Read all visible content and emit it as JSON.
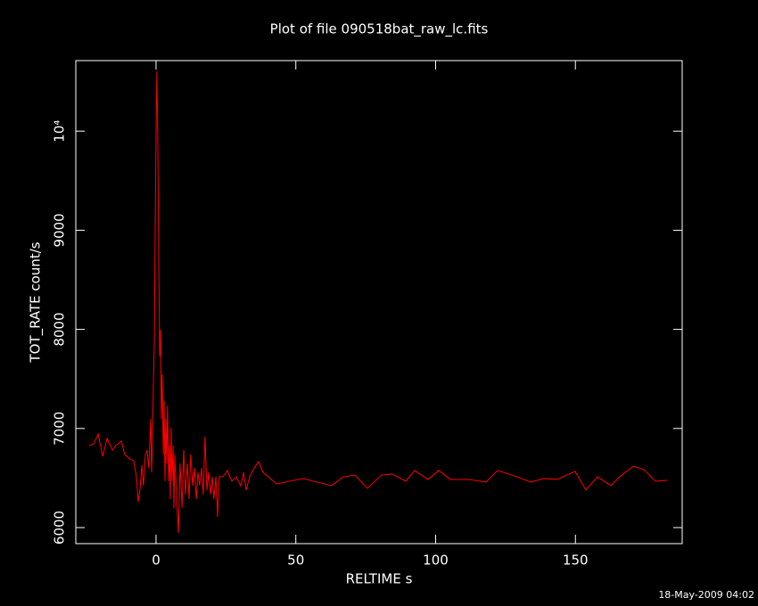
{
  "chart_data": {
    "type": "line",
    "title": "Plot of file 090518bat_raw_lc.fits",
    "x_label": "RELTIME  s",
    "y_label": "TOT_RATE  count/s",
    "timestamp": "18-May-2009 04:02",
    "xlim": [
      -28.7,
      188.2
    ],
    "ylim": [
      5838,
      10712
    ],
    "xticks": [
      0,
      50,
      100,
      150
    ],
    "yticks": [
      6000,
      7000,
      8000,
      9000,
      {
        "value": 10000,
        "label": "10⁴"
      }
    ],
    "grid": false,
    "x": [
      -23.9,
      -22.3,
      -20.7,
      -19.1,
      -17.5,
      -15.6,
      -14.4,
      -12.4,
      -11.2,
      -9.3,
      -8.0,
      -7.0,
      -6.4,
      -5.7,
      -5.1,
      -4.5,
      -3.8,
      -3.2,
      -2.6,
      -1.9,
      -1.6,
      -1.3,
      -1.0,
      -0.6,
      -0.3,
      0.0,
      0.3,
      0.6,
      1.0,
      1.3,
      1.6,
      1.9,
      2.2,
      2.6,
      2.9,
      3.2,
      3.5,
      3.8,
      4.1,
      4.5,
      4.8,
      5.1,
      5.4,
      5.7,
      6.1,
      6.4,
      6.7,
      7.3,
      8.0,
      8.6,
      9.3,
      9.9,
      10.5,
      11.2,
      11.8,
      12.4,
      13.1,
      13.7,
      14.4,
      15.0,
      15.6,
      16.3,
      16.9,
      17.5,
      18.2,
      18.8,
      19.5,
      20.1,
      20.7,
      21.4,
      22.0,
      22.6,
      23.9,
      25.5,
      27.1,
      28.7,
      30.3,
      31.3,
      32.2,
      33.5,
      35.1,
      36.7,
      38.3,
      43.1,
      47.8,
      52.6,
      57.4,
      62.8,
      67.0,
      71.1,
      75.6,
      80.7,
      84.5,
      89.3,
      92.5,
      97.3,
      101.1,
      105.3,
      111.6,
      118.0,
      122.2,
      129.2,
      134.0,
      138.8,
      143.5,
      149.9,
      153.7,
      157.9,
      162.7,
      165.9,
      170.7,
      174.5,
      178.6,
      182.8
    ],
    "series": [
      {
        "name": "TOT_RATE",
        "color": "#ff0000",
        "values": [
          6827,
          6845,
          6944,
          6719,
          6899,
          6782,
          6827,
          6872,
          6737,
          6692,
          6674,
          6512,
          6261,
          6396,
          6629,
          6423,
          6737,
          6782,
          6602,
          7097,
          6557,
          6827,
          7367,
          7906,
          9075,
          9975,
          10604,
          9975,
          8626,
          7727,
          7996,
          7097,
          7547,
          6737,
          7277,
          6468,
          7097,
          6647,
          7232,
          6468,
          6827,
          6288,
          7007,
          6468,
          6827,
          6198,
          6737,
          6333,
          5946,
          6647,
          6198,
          6782,
          6333,
          6647,
          6288,
          6737,
          6423,
          6602,
          6288,
          6557,
          6423,
          6602,
          6333,
          6917,
          6378,
          6557,
          6333,
          6512,
          6288,
          6512,
          6108,
          6512,
          6512,
          6576,
          6468,
          6512,
          6423,
          6557,
          6378,
          6512,
          6602,
          6665,
          6557,
          6441,
          6468,
          6495,
          6459,
          6423,
          6512,
          6530,
          6396,
          6530,
          6540,
          6468,
          6576,
          6486,
          6576,
          6486,
          6486,
          6459,
          6576,
          6512,
          6459,
          6495,
          6486,
          6567,
          6378,
          6512,
          6423,
          6512,
          6620,
          6585,
          6468,
          6477
        ]
      }
    ]
  }
}
